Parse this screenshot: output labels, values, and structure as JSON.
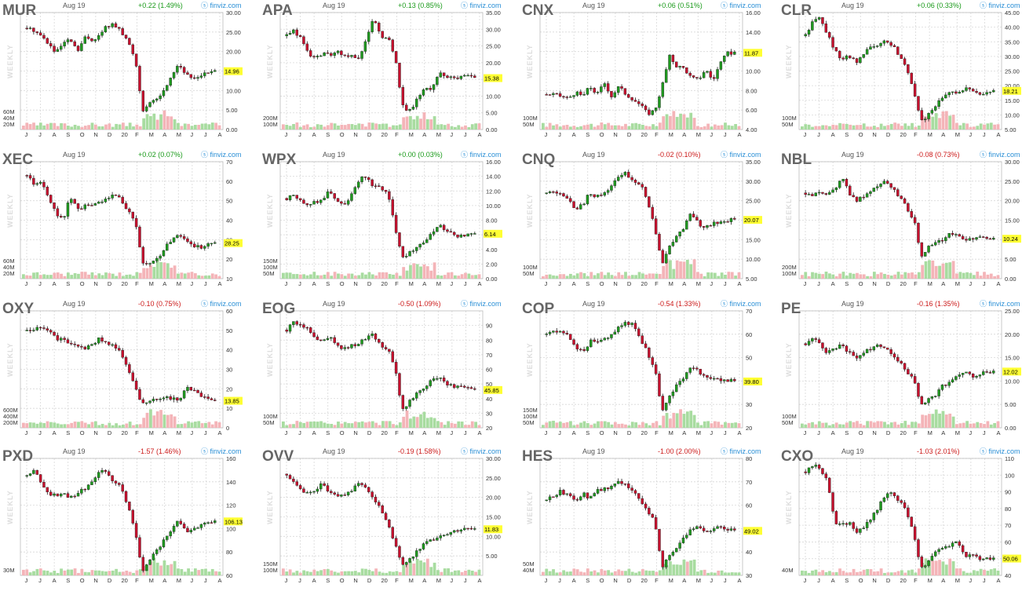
{
  "chart_data": [
    {
      "type": "candlestick",
      "ticker": "MUR",
      "date": "Aug 19",
      "change": "+0.22 (1.49%)",
      "dir": "up",
      "brand": "finviz.com",
      "period": "WEEKLY",
      "price_label": "14.96",
      "ylim": [
        0,
        30
      ],
      "yticks": [
        "30.00",
        "25.00",
        "20.00",
        "15.00",
        "10.00",
        "5.00",
        "0.00"
      ],
      "volume_ticks": [
        "60M",
        "40M",
        "20M"
      ],
      "months": [
        "J",
        "J",
        "A",
        "S",
        "O",
        "N",
        "D",
        "20",
        "F",
        "M",
        "A",
        "M",
        "J",
        "J",
        "A"
      ],
      "series": [
        26,
        25.5,
        24,
        22,
        19.5,
        22,
        23,
        20,
        23.5,
        23,
        24,
        26.5,
        27,
        25,
        22.5,
        18,
        5,
        6.5,
        8,
        10,
        14,
        17,
        14,
        13,
        14,
        14.5,
        15
      ]
    },
    {
      "type": "candlestick",
      "ticker": "APA",
      "date": "Aug 19",
      "change": "+0.13 (0.85%)",
      "dir": "up",
      "brand": "finviz.com",
      "period": "WEEKLY",
      "price_label": "15.38",
      "ylim": [
        0,
        35
      ],
      "yticks": [
        "35.00",
        "30.00",
        "25.00",
        "20.00",
        "15.00",
        "10.00",
        "5.00",
        "0.00"
      ],
      "volume_ticks": [
        "200M",
        "100M"
      ],
      "months": [
        "J",
        "J",
        "A",
        "S",
        "O",
        "N",
        "D",
        "20",
        "F",
        "M",
        "A",
        "M",
        "J",
        "J",
        "A"
      ],
      "series": [
        28,
        29.5,
        27,
        23,
        21,
        23,
        22,
        23.5,
        22,
        22,
        21.5,
        27,
        33,
        28,
        27.5,
        22,
        7,
        5.5,
        9,
        12,
        12.5,
        17,
        16,
        15,
        15.5,
        16,
        15.4
      ]
    },
    {
      "type": "candlestick",
      "ticker": "CNX",
      "date": "Aug 19",
      "change": "+0.06 (0.51%)",
      "dir": "up",
      "brand": "finviz.com",
      "period": "WEEKLY",
      "price_label": "11.87",
      "ylim": [
        4,
        16
      ],
      "yticks": [
        "16.00",
        "14.00",
        "12.00",
        "10.00",
        "8.00",
        "6.00",
        "4.00"
      ],
      "volume_ticks": [
        "100M",
        "50M"
      ],
      "months": [
        "J",
        "J",
        "A",
        "S",
        "O",
        "N",
        "D",
        "20",
        "F",
        "M",
        "A",
        "M",
        "J",
        "J",
        "A"
      ],
      "series": [
        7.6,
        7.6,
        7.4,
        7.2,
        7.8,
        7.4,
        8.4,
        7.6,
        8.8,
        7.4,
        8.4,
        7.6,
        7.1,
        6.5,
        5.6,
        6,
        8.5,
        11.5,
        10.5,
        10.3,
        9.3,
        9.1,
        10.2,
        9,
        10.8,
        11.8,
        11.9
      ]
    },
    {
      "type": "candlestick",
      "ticker": "CLR",
      "date": "Aug 19",
      "change": "+0.06 (0.33%)",
      "dir": "up",
      "brand": "finviz.com",
      "period": "WEEKLY",
      "price_label": "18.21",
      "ylim": [
        5,
        45
      ],
      "yticks": [
        "45.00",
        "40.00",
        "35.00",
        "30.00",
        "25.00",
        "20.00",
        "15.00",
        "10.00",
        "5.00"
      ],
      "volume_ticks": [
        "100M",
        "50M"
      ],
      "months": [
        "J",
        "J",
        "A",
        "S",
        "O",
        "N",
        "D",
        "20",
        "F",
        "M",
        "A",
        "M",
        "J",
        "J",
        "A"
      ],
      "series": [
        37,
        42,
        43,
        38,
        32,
        29,
        30,
        28,
        31,
        33,
        34,
        35,
        34,
        30,
        26,
        18,
        8,
        10,
        13,
        16,
        18,
        17,
        19,
        18,
        17,
        18,
        18.2
      ]
    },
    {
      "type": "candlestick",
      "ticker": "XEC",
      "date": "Aug 19",
      "change": "+0.02 (0.07%)",
      "dir": "up",
      "brand": "finviz.com",
      "period": "WEEKLY",
      "price_label": "28.25",
      "ylim": [
        10,
        70
      ],
      "yticks": [
        "70",
        "60",
        "50",
        "40",
        "30",
        "20",
        "10"
      ],
      "volume_ticks": [
        "60M",
        "40M",
        "20M"
      ],
      "months": [
        "J",
        "J",
        "A",
        "S",
        "O",
        "N",
        "D",
        "20",
        "F",
        "M",
        "A",
        "M",
        "J",
        "J",
        "A"
      ],
      "series": [
        63,
        58,
        60,
        52,
        44,
        40,
        52,
        46,
        47,
        48,
        49,
        51,
        54,
        50,
        45,
        40,
        18,
        17,
        20,
        25,
        30,
        33,
        30,
        27,
        26,
        28,
        28.2
      ]
    },
    {
      "type": "candlestick",
      "ticker": "WPX",
      "date": "Aug 19",
      "change": "+0.00 (0.03%)",
      "dir": "up",
      "brand": "finviz.com",
      "period": "WEEKLY",
      "price_label": "6.14",
      "ylim": [
        0,
        16
      ],
      "yticks": [
        "16.00",
        "14.00",
        "12.00",
        "10.00",
        "8.00",
        "6.00",
        "4.00",
        "2.00",
        "0.00"
      ],
      "volume_ticks": [
        "150M",
        "100M",
        "50M"
      ],
      "months": [
        "J",
        "J",
        "A",
        "S",
        "O",
        "N",
        "D",
        "20",
        "F",
        "M",
        "A",
        "M",
        "J",
        "J",
        "A"
      ],
      "series": [
        11,
        11.5,
        10.5,
        10,
        10.5,
        11,
        12,
        10.5,
        10,
        11.5,
        13.5,
        14,
        12.5,
        12.5,
        11.5,
        7,
        3,
        3.5,
        4.5,
        5,
        6,
        7.5,
        6.5,
        6,
        5.8,
        6,
        6.1
      ]
    },
    {
      "type": "candlestick",
      "ticker": "CNQ",
      "date": "Aug 19",
      "change": "-0.02 (0.10%)",
      "dir": "down",
      "brand": "finviz.com",
      "period": "WEEKLY",
      "price_label": "20.07",
      "ylim": [
        5,
        35
      ],
      "yticks": [
        "35.00",
        "30.00",
        "25.00",
        "20.00",
        "15.00",
        "10.00",
        "5.00"
      ],
      "volume_ticks": [
        "100M",
        "50M"
      ],
      "months": [
        "J",
        "J",
        "A",
        "S",
        "O",
        "N",
        "D",
        "20",
        "F",
        "M",
        "A",
        "M",
        "J",
        "J",
        "A"
      ],
      "series": [
        27,
        27.5,
        27,
        25,
        23,
        24,
        27,
        26,
        27,
        29,
        31,
        32,
        30,
        29,
        25,
        18,
        9,
        13,
        16,
        18,
        22,
        19,
        18,
        19,
        19.5,
        20,
        20.07
      ]
    },
    {
      "type": "candlestick",
      "ticker": "NBL",
      "date": "Aug 19",
      "change": "-0.08 (0.73%)",
      "dir": "down",
      "brand": "finviz.com",
      "period": "WEEKLY",
      "price_label": "10.24",
      "ylim": [
        0,
        30
      ],
      "yticks": [
        "30.00",
        "25.00",
        "20.00",
        "15.00",
        "10.00",
        "5.00",
        "0.00"
      ],
      "volume_ticks": [
        "200M",
        "100M"
      ],
      "months": [
        "J",
        "J",
        "A",
        "S",
        "O",
        "N",
        "D",
        "20",
        "F",
        "M",
        "A",
        "M",
        "J",
        "J",
        "A"
      ],
      "series": [
        22,
        21.5,
        22,
        22,
        23,
        26,
        22,
        20,
        21,
        22,
        24,
        25,
        23,
        21,
        18,
        15,
        6,
        8,
        9,
        10,
        12,
        11,
        10,
        10,
        11,
        10.5,
        10.24
      ]
    },
    {
      "type": "candlestick",
      "ticker": "OXY",
      "date": "Aug 19",
      "change": "-0.10 (0.75%)",
      "dir": "down",
      "brand": "finviz.com",
      "period": "WEEKLY",
      "price_label": "13.85",
      "ylim": [
        0,
        60
      ],
      "yticks": [
        "60",
        "50",
        "40",
        "30",
        "20",
        "10",
        "0"
      ],
      "volume_ticks": [
        "600M",
        "400M",
        "200M"
      ],
      "months": [
        "J",
        "J",
        "A",
        "S",
        "O",
        "N",
        "D",
        "20",
        "F",
        "M",
        "A",
        "M",
        "J",
        "J",
        "A"
      ],
      "series": [
        50,
        51,
        52,
        50,
        46,
        45,
        44,
        42,
        41,
        43,
        46,
        44,
        42,
        38,
        30,
        20,
        12,
        13,
        15,
        16,
        15,
        14,
        21,
        19,
        17,
        15,
        13.85
      ]
    },
    {
      "type": "candlestick",
      "ticker": "EOG",
      "date": "Aug 19",
      "change": "-0.50 (1.09%)",
      "dir": "down",
      "brand": "finviz.com",
      "period": "WEEKLY",
      "price_label": "45.85",
      "ylim": [
        20,
        100
      ],
      "yticks": [
        "90",
        "80",
        "70",
        "60",
        "50",
        "40",
        "30",
        "20"
      ],
      "volume_ticks": [
        "100M",
        "50M"
      ],
      "months": [
        "J",
        "J",
        "A",
        "S",
        "O",
        "N",
        "D",
        "20",
        "F",
        "M",
        "A",
        "M",
        "J",
        "J",
        "A"
      ],
      "series": [
        87,
        92,
        90,
        88,
        82,
        79,
        84,
        76,
        74,
        76,
        78,
        82,
        84,
        76,
        74,
        60,
        32,
        38,
        44,
        48,
        52,
        55,
        51,
        48,
        48,
        47,
        45.85
      ]
    },
    {
      "type": "candlestick",
      "ticker": "COP",
      "date": "Aug 19",
      "change": "-0.54 (1.33%)",
      "dir": "down",
      "brand": "finviz.com",
      "period": "WEEKLY",
      "price_label": "39.80",
      "ylim": [
        20,
        70
      ],
      "yticks": [
        "70",
        "60",
        "50",
        "40",
        "30",
        "20"
      ],
      "volume_ticks": [
        "150M",
        "100M",
        "50M"
      ],
      "months": [
        "J",
        "J",
        "A",
        "S",
        "O",
        "N",
        "D",
        "20",
        "F",
        "M",
        "A",
        "M",
        "J",
        "J",
        "A"
      ],
      "series": [
        60,
        61,
        62,
        59,
        55,
        52,
        57,
        56,
        58,
        60,
        63,
        65,
        64,
        58,
        52,
        45,
        27,
        33,
        38,
        42,
        46,
        44,
        42,
        41,
        40,
        40.5,
        39.8
      ]
    },
    {
      "type": "candlestick",
      "ticker": "PE",
      "date": "Aug 19",
      "change": "-0.16 (1.35%)",
      "dir": "down",
      "brand": "finviz.com",
      "period": "WEEKLY",
      "price_label": "12.02",
      "ylim": [
        0,
        25
      ],
      "yticks": [
        "25.00",
        "20.00",
        "15.00",
        "10.00",
        "5.00",
        "0.00"
      ],
      "volume_ticks": [
        "100M",
        "50M"
      ],
      "months": [
        "J",
        "J",
        "A",
        "S",
        "O",
        "N",
        "D",
        "20",
        "F",
        "M",
        "A",
        "M",
        "J",
        "J",
        "A"
      ],
      "series": [
        18,
        19,
        18,
        16,
        17,
        18,
        16,
        15,
        16,
        17,
        18,
        17,
        16,
        14,
        12,
        10,
        5,
        6,
        7,
        9,
        10,
        11,
        12,
        11,
        11.5,
        12,
        12.02
      ]
    },
    {
      "type": "candlestick",
      "ticker": "PXD",
      "date": "Aug 19",
      "change": "-1.57 (1.46%)",
      "dir": "down",
      "brand": "finviz.com",
      "period": "WEEKLY",
      "price_label": "106.13",
      "ylim": [
        60,
        160
      ],
      "yticks": [
        "160",
        "140",
        "120",
        "100",
        "80",
        "60"
      ],
      "volume_ticks": [
        "30M"
      ],
      "months": [
        "J",
        "J",
        "A",
        "S",
        "O",
        "N",
        "D",
        "20",
        "F",
        "M",
        "A",
        "M",
        "J",
        "J",
        "A"
      ],
      "series": [
        145,
        150,
        140,
        130,
        128,
        132,
        126,
        130,
        134,
        140,
        148,
        150,
        140,
        135,
        120,
        96,
        64,
        72,
        82,
        90,
        100,
        108,
        98,
        100,
        102,
        105,
        106.13
      ]
    },
    {
      "type": "candlestick",
      "ticker": "OVV",
      "date": "Aug 19",
      "change": "-0.19 (1.58%)",
      "dir": "down",
      "brand": "finviz.com",
      "period": "WEEKLY",
      "price_label": "11.83",
      "ylim": [
        0,
        30
      ],
      "yticks": [
        "30.00",
        "25.00",
        "20.00",
        "15.00",
        "10.00",
        "5.00"
      ],
      "volume_ticks": [
        "150M",
        "100M"
      ],
      "months": [
        "J",
        "J",
        "A",
        "S",
        "O",
        "N",
        "D",
        "20",
        "F",
        "M",
        "A",
        "M",
        "J",
        "J",
        "A"
      ],
      "series": [
        26,
        24,
        22,
        21,
        22,
        24,
        21,
        20,
        21,
        22,
        24,
        22,
        20,
        17,
        13,
        8,
        3,
        4,
        6,
        8,
        9,
        10,
        10.5,
        11,
        11.5,
        11.8,
        11.83
      ]
    },
    {
      "type": "candlestick",
      "ticker": "HES",
      "date": "Aug 19",
      "change": "-1.00 (2.00%)",
      "dir": "down",
      "brand": "finviz.com",
      "period": "WEEKLY",
      "price_label": "49.02",
      "ylim": [
        30,
        80
      ],
      "yticks": [
        "80",
        "70",
        "60",
        "50",
        "40",
        "30"
      ],
      "volume_ticks": [
        "50M",
        "40M"
      ],
      "months": [
        "J",
        "J",
        "A",
        "S",
        "O",
        "N",
        "D",
        "20",
        "F",
        "M",
        "A",
        "M",
        "J",
        "J",
        "A"
      ],
      "series": [
        62,
        64,
        66,
        64,
        62,
        65,
        63,
        66,
        67,
        68,
        70,
        69,
        66,
        62,
        58,
        52,
        34,
        38,
        42,
        46,
        50,
        52,
        48,
        50,
        51,
        50,
        49.02
      ]
    },
    {
      "type": "candlestick",
      "ticker": "CXO",
      "date": "Aug 19",
      "change": "-1.03 (2.01%)",
      "dir": "down",
      "brand": "finviz.com",
      "period": "WEEKLY",
      "price_label": "50.06",
      "ylim": [
        40,
        110
      ],
      "yticks": [
        "110",
        "100",
        "90",
        "80",
        "70",
        "60",
        "50",
        "40"
      ],
      "volume_ticks": [
        "40M"
      ],
      "months": [
        "J",
        "J",
        "A",
        "S",
        "O",
        "N",
        "D",
        "20",
        "F",
        "M",
        "A",
        "M",
        "J",
        "J",
        "A"
      ],
      "series": [
        102,
        106,
        104,
        98,
        72,
        70,
        72,
        66,
        68,
        74,
        80,
        88,
        90,
        84,
        78,
        64,
        44,
        48,
        54,
        56,
        58,
        60,
        52,
        52,
        50,
        51,
        50.06
      ]
    }
  ]
}
